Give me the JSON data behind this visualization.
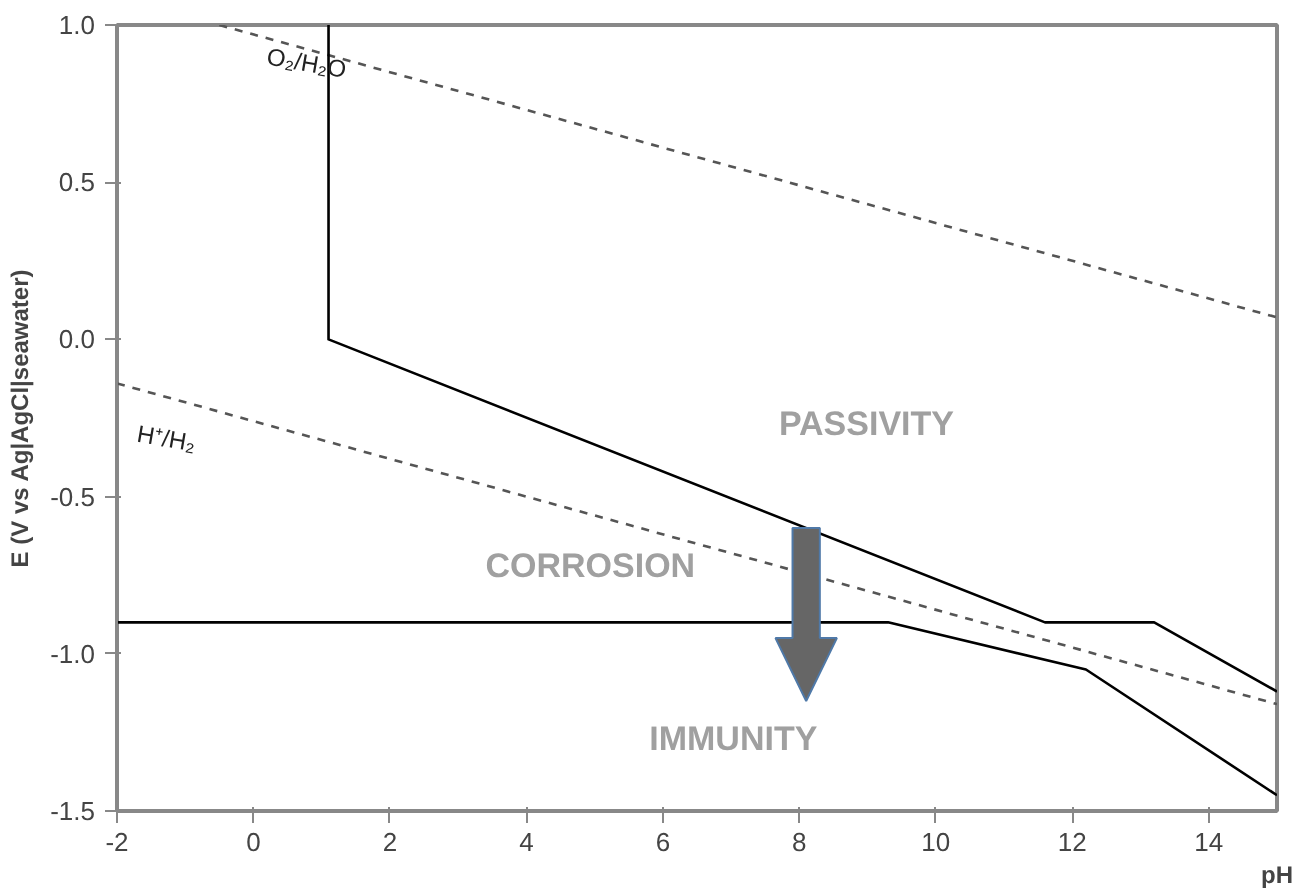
{
  "chart_data": {
    "type": "line",
    "xlabel": "pH",
    "ylabel": "E (V vs Ag|AgCl|seawater)",
    "xlim": [
      -2,
      15
    ],
    "ylim": [
      -1.5,
      1.0
    ],
    "xticks": [
      -2,
      0,
      2,
      4,
      6,
      8,
      10,
      12,
      14
    ],
    "yticks": [
      {
        "value": -1.5,
        "label": "-1.5"
      },
      {
        "value": -1.0,
        "label": "-1.0"
      },
      {
        "value": -0.5,
        "label": "-0.5"
      },
      {
        "value": 0,
        "label": "0.0"
      },
      {
        "value": 0.5,
        "label": "0.5"
      },
      {
        "value": 1.0,
        "label": "1.0"
      }
    ],
    "grid": false,
    "marker": "none",
    "series": [
      {
        "color": "#555555",
        "line_style": "dashed",
        "x": [
          -0.5,
          15
        ],
        "values": [
          1.0,
          0.07
        ]
      },
      {
        "color": "#555555",
        "line_style": "dashed",
        "x": [
          -2,
          15
        ],
        "values": [
          -0.14,
          -1.16
        ]
      },
      {
        "color": "#000000",
        "line_style": "solid",
        "x": [
          1.1,
          1.1,
          11.6,
          13.2,
          15
        ],
        "values": [
          1.0,
          0.0,
          -0.9,
          -0.9,
          -1.12
        ]
      },
      {
        "color": "#000000",
        "line_style": "solid",
        "x": [
          -2,
          9.3,
          12.2,
          15
        ],
        "values": [
          -0.9,
          -0.9,
          -1.05,
          -1.45
        ]
      }
    ],
    "annotations": [
      "O₂/H₂O",
      "H⁺/H₂",
      "PASSIVITY",
      "CORROSION",
      "IMMUNITY"
    ]
  }
}
